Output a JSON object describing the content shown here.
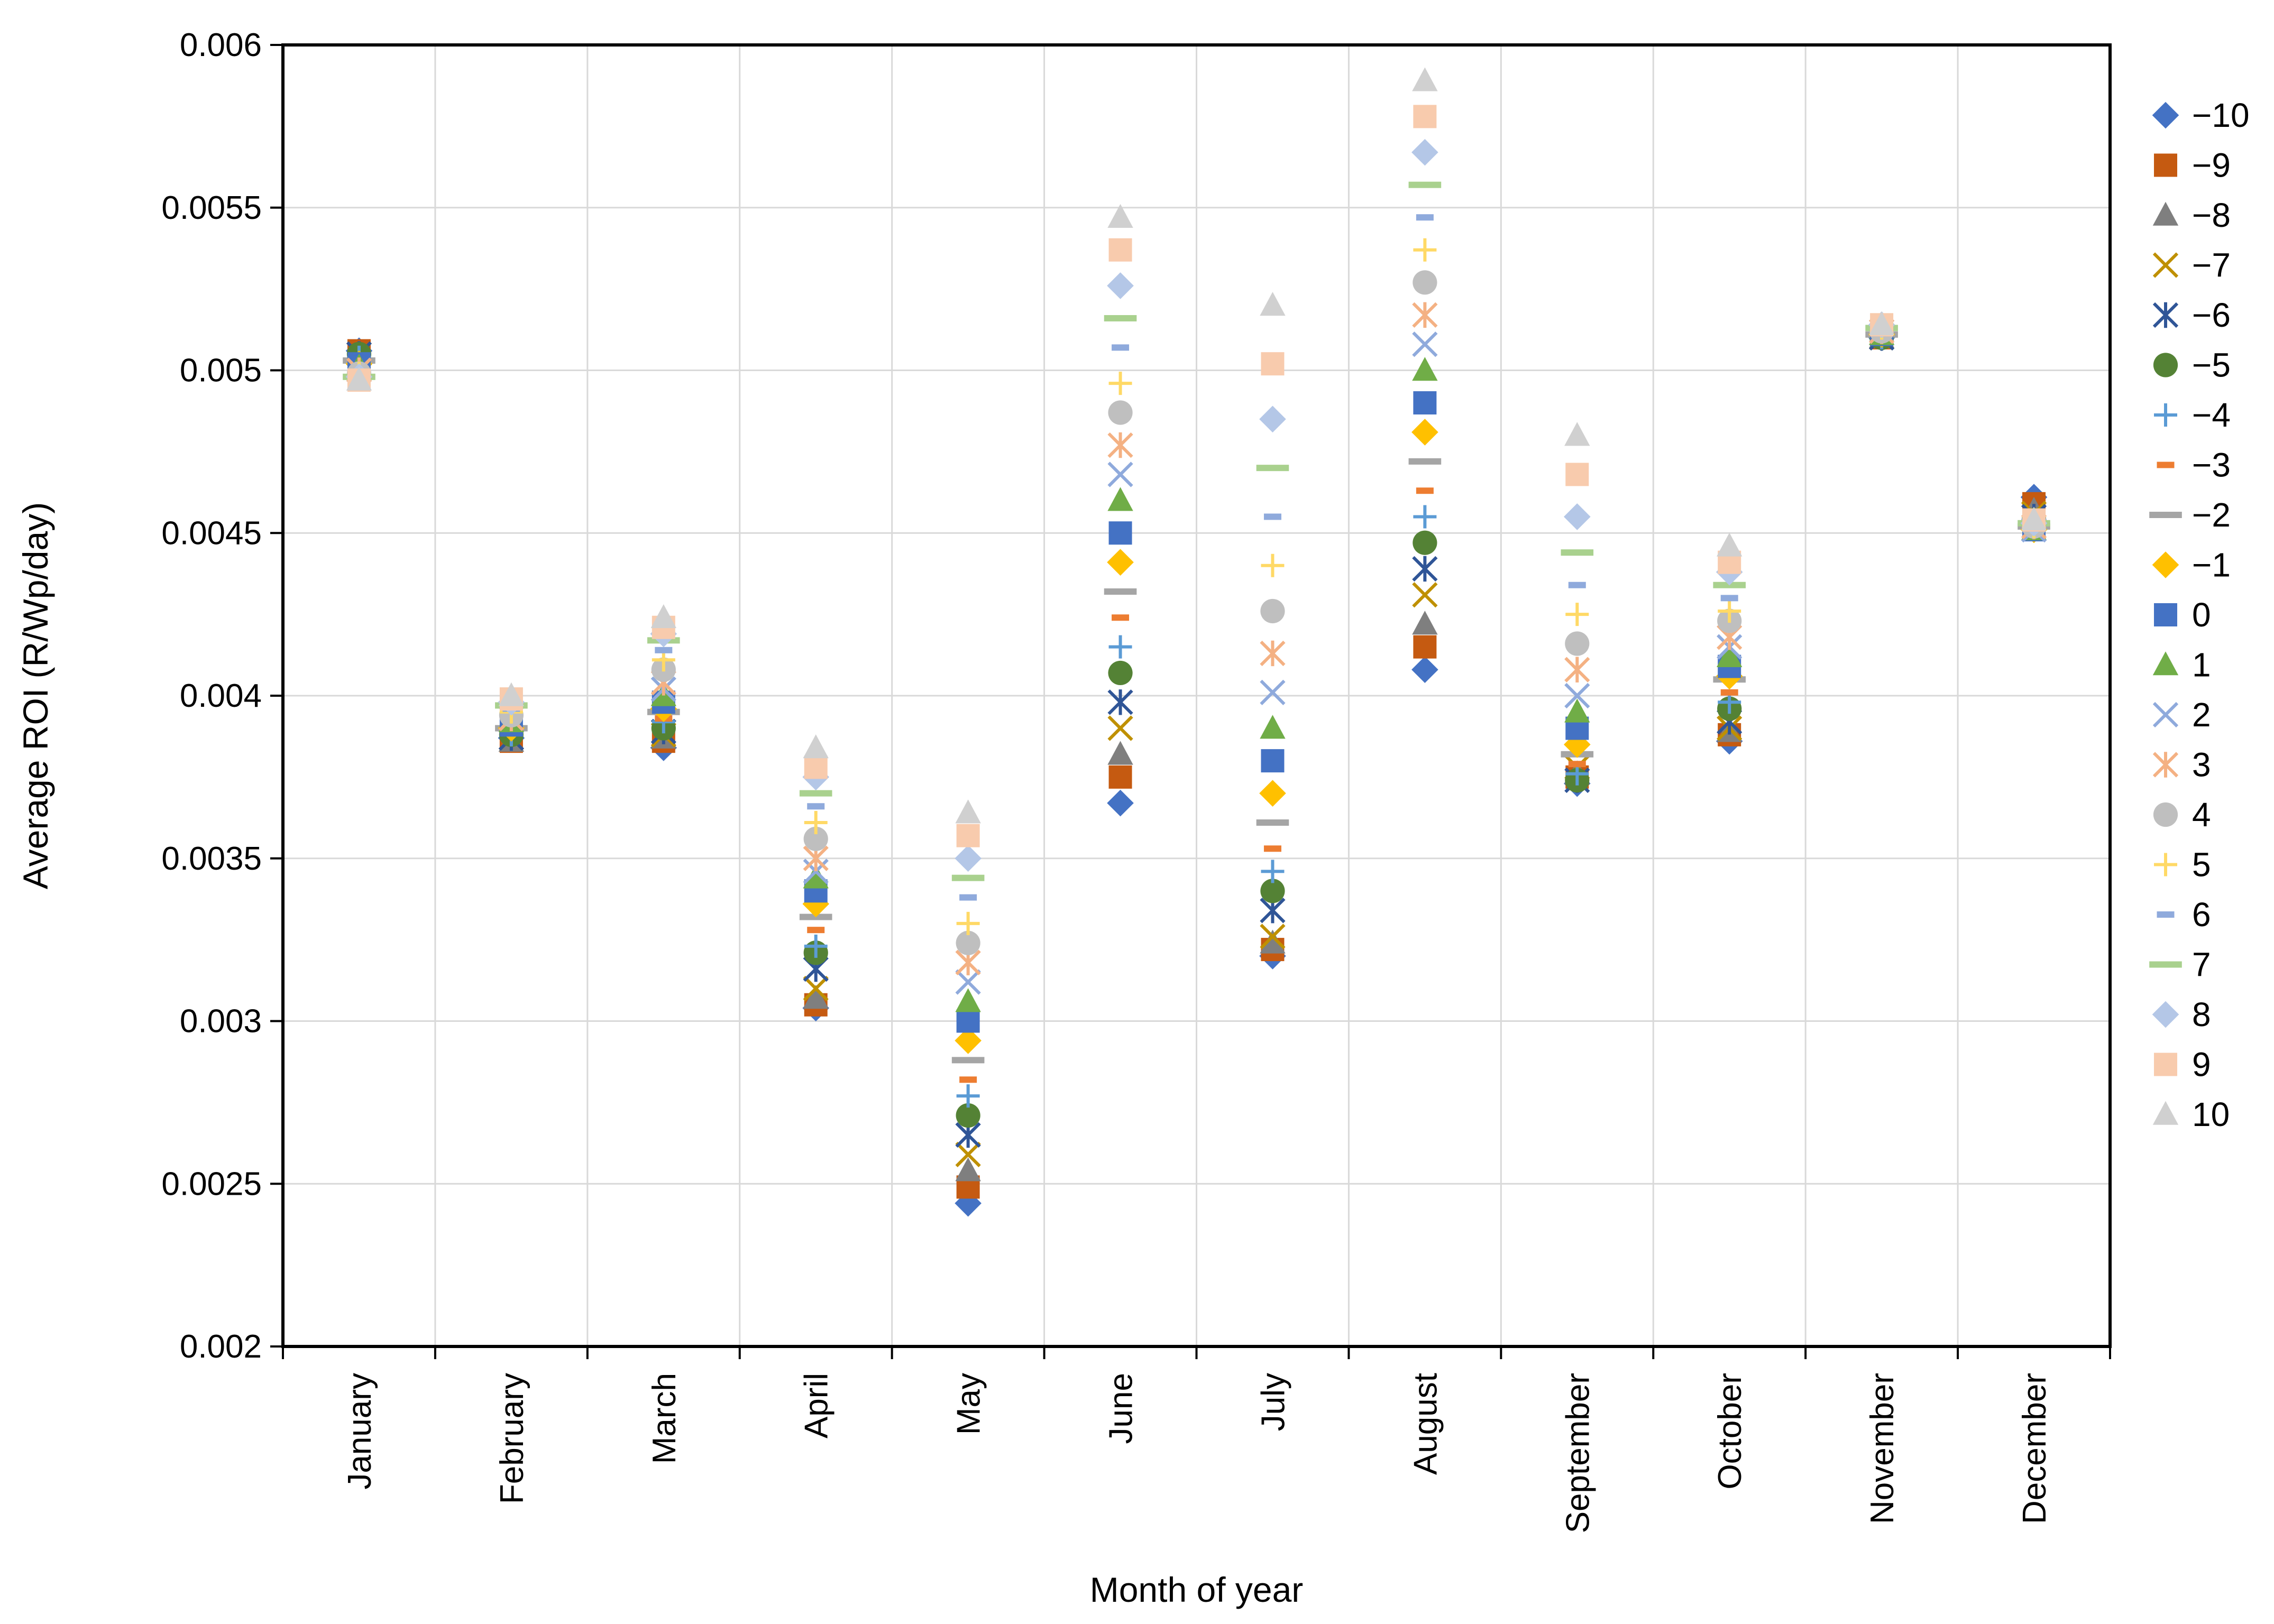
{
  "chart_data": {
    "type": "scatter",
    "title": "",
    "xlabel": "Month of year",
    "ylabel": "Average ROI (R/Wp/day)",
    "ylim": [
      0.002,
      0.006
    ],
    "yticks": [
      "0.002",
      "0.0025",
      "0.003",
      "0.0035",
      "0.004",
      "0.0045",
      "0.005",
      "0.0055",
      "0.006"
    ],
    "grid": true,
    "legend_position": "right",
    "categories": [
      "January",
      "February",
      "March",
      "April",
      "May",
      "June",
      "July",
      "August",
      "September",
      "October",
      "November",
      "December"
    ],
    "series": [
      {
        "name": "−10",
        "marker": "diamond",
        "color": "#4472C4",
        "values": [
          0.00506,
          0.00387,
          0.00384,
          0.00304,
          0.00244,
          0.00367,
          0.0032,
          0.00408,
          0.00373,
          0.00386,
          0.0051,
          0.00461
        ]
      },
      {
        "name": "−9",
        "marker": "square",
        "color": "#C55A11",
        "values": [
          0.00506,
          0.00386,
          0.00386,
          0.00305,
          0.00249,
          0.00375,
          0.00322,
          0.00415,
          0.00375,
          0.00388,
          0.0051,
          0.00459
        ]
      },
      {
        "name": "−8",
        "marker": "triangle",
        "color": "#7F7F7F",
        "values": [
          0.00505,
          0.00386,
          0.00387,
          0.00307,
          0.00254,
          0.00382,
          0.00324,
          0.00422,
          0.00376,
          0.00389,
          0.0051,
          0.00457
        ]
      },
      {
        "name": "−7",
        "marker": "x",
        "color": "#BF9000",
        "values": [
          0.00505,
          0.00387,
          0.00388,
          0.0031,
          0.00259,
          0.0039,
          0.00326,
          0.00431,
          0.00378,
          0.0039,
          0.0051,
          0.00456
        ]
      },
      {
        "name": "−6",
        "marker": "star",
        "color": "#2F5597",
        "values": [
          0.00505,
          0.00387,
          0.00389,
          0.00316,
          0.00265,
          0.00398,
          0.00334,
          0.00439,
          0.00374,
          0.00392,
          0.0051,
          0.00455
        ]
      },
      {
        "name": "−5",
        "marker": "circle",
        "color": "#548235",
        "values": [
          0.00505,
          0.00388,
          0.0039,
          0.00321,
          0.00271,
          0.00407,
          0.0034,
          0.00447,
          0.00374,
          0.00396,
          0.0051,
          0.00454
        ]
      },
      {
        "name": "−4",
        "marker": "plus",
        "color": "#5B9BD5",
        "values": [
          0.00504,
          0.00388,
          0.00392,
          0.00323,
          0.00277,
          0.00415,
          0.00346,
          0.00455,
          0.00376,
          0.00398,
          0.0051,
          0.00453
        ]
      },
      {
        "name": "−3",
        "marker": "dash",
        "color": "#ED7D31",
        "values": [
          0.00504,
          0.00389,
          0.00393,
          0.00328,
          0.00282,
          0.00424,
          0.00353,
          0.00463,
          0.00379,
          0.00401,
          0.0051,
          0.00452
        ]
      },
      {
        "name": "−2",
        "marker": "longdash",
        "color": "#A5A5A5",
        "values": [
          0.00503,
          0.0039,
          0.00395,
          0.00332,
          0.00288,
          0.00432,
          0.00361,
          0.00472,
          0.00382,
          0.00405,
          0.00511,
          0.00452
        ]
      },
      {
        "name": "−1",
        "marker": "diamond",
        "color": "#FFC000",
        "values": [
          0.00502,
          0.0039,
          0.00396,
          0.00336,
          0.00294,
          0.00441,
          0.0037,
          0.00481,
          0.00385,
          0.00406,
          0.00511,
          0.00451
        ]
      },
      {
        "name": "0",
        "marker": "square",
        "color": "#4472C4",
        "values": [
          0.00502,
          0.00391,
          0.00398,
          0.0034,
          0.003,
          0.0045,
          0.0038,
          0.0049,
          0.0039,
          0.00409,
          0.00511,
          0.00451
        ]
      },
      {
        "name": "1",
        "marker": "triangle",
        "color": "#70AD47",
        "values": [
          0.00501,
          0.00392,
          0.004,
          0.00344,
          0.00306,
          0.0046,
          0.0039,
          0.005,
          0.00395,
          0.00412,
          0.00511,
          0.00451
        ]
      },
      {
        "name": "2",
        "marker": "x",
        "color": "#8FAADC",
        "values": [
          0.005,
          0.00393,
          0.00402,
          0.00346,
          0.00312,
          0.00468,
          0.00401,
          0.00508,
          0.004,
          0.00415,
          0.00512,
          0.00451
        ]
      },
      {
        "name": "3",
        "marker": "star",
        "color": "#F4B183",
        "values": [
          0.005,
          0.00393,
          0.00404,
          0.0035,
          0.00318,
          0.00477,
          0.00413,
          0.00517,
          0.00408,
          0.00418,
          0.00512,
          0.00452
        ]
      },
      {
        "name": "4",
        "marker": "circle",
        "color": "#BFBFBF",
        "values": [
          0.00499,
          0.00394,
          0.00408,
          0.00356,
          0.00324,
          0.00487,
          0.00426,
          0.00527,
          0.00416,
          0.00423,
          0.00512,
          0.00452
        ]
      },
      {
        "name": "5",
        "marker": "plus",
        "color": "#FFD966",
        "values": [
          0.00499,
          0.00395,
          0.00411,
          0.00361,
          0.0033,
          0.00496,
          0.0044,
          0.00537,
          0.00425,
          0.00426,
          0.00513,
          0.00452
        ]
      },
      {
        "name": "6",
        "marker": "dash",
        "color": "#8FAADC",
        "values": [
          0.00499,
          0.00396,
          0.00414,
          0.00366,
          0.00338,
          0.00507,
          0.00455,
          0.00547,
          0.00434,
          0.0043,
          0.00513,
          0.00453
        ]
      },
      {
        "name": "7",
        "marker": "longdash",
        "color": "#A9D18E",
        "values": [
          0.00498,
          0.00397,
          0.00417,
          0.0037,
          0.00344,
          0.00516,
          0.0047,
          0.00557,
          0.00444,
          0.00434,
          0.00513,
          0.00453
        ]
      },
      {
        "name": "8",
        "marker": "diamond",
        "color": "#B4C7E7",
        "values": [
          0.00498,
          0.00398,
          0.00419,
          0.00375,
          0.0035,
          0.00526,
          0.00485,
          0.00567,
          0.00455,
          0.00438,
          0.00514,
          0.00453
        ]
      },
      {
        "name": "9",
        "marker": "square",
        "color": "#F8CBAD",
        "values": [
          0.00497,
          0.00399,
          0.00421,
          0.00378,
          0.00357,
          0.00537,
          0.00502,
          0.00578,
          0.00468,
          0.00441,
          0.00514,
          0.00454
        ]
      },
      {
        "name": "10",
        "marker": "triangle",
        "color": "#D0D0D0",
        "values": [
          0.00497,
          0.004,
          0.00424,
          0.00384,
          0.00364,
          0.00547,
          0.0052,
          0.00589,
          0.0048,
          0.00446,
          0.00514,
          0.00454
        ]
      }
    ]
  }
}
